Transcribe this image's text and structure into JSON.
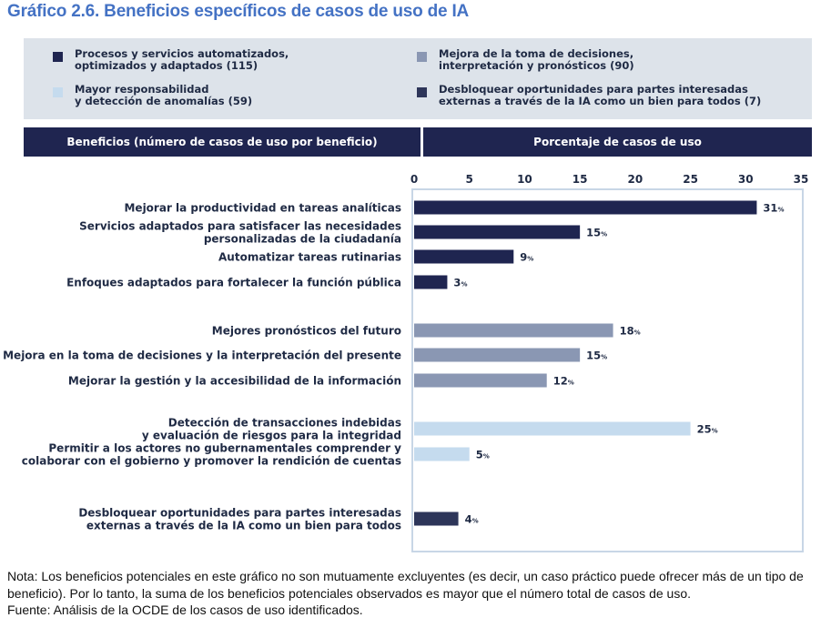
{
  "title": "Gráfico 2.6. Beneficios específicos de casos de uso de IA",
  "legend": [
    {
      "label": "Procesos y servicios automatizados,\noptimizados y adaptados  (115)",
      "color": "#1f2550"
    },
    {
      "label": "Mejora de la toma de decisiones,\ninterpretación y pronósticos (90)",
      "color": "#8a97b3"
    },
    {
      "label": "Mayor responsabilidad\ny detección de anomalías (59)",
      "color": "#c5dbee"
    },
    {
      "label": "Desbloquear oportunidades para partes interesadas\nexternas a través de la IA como un bien para todos (7)",
      "color": "#2d3559"
    }
  ],
  "headers": {
    "left": "Beneficios (número de casos de uso por beneficio)",
    "right": "Porcentaje de casos de uso"
  },
  "chart_data": {
    "type": "bar",
    "orientation": "horizontal",
    "xlim": [
      0,
      35
    ],
    "xticks": [
      0,
      5,
      10,
      15,
      20,
      25,
      30,
      35
    ],
    "value_suffix": "%",
    "categories": [
      "Mejorar la productividad en tareas analíticas",
      "Servicios adaptados para satisfacer las necesidades\npersonalizadas de la ciudadanía",
      "Automatizar tareas rutinarias",
      "Enfoques adaptados para fortalecer la función pública",
      "Mejores pronósticos del futuro",
      "Mejora en la toma de decisiones y la interpretación del presente",
      "Mejorar la gestión y la accesibilidad de la información",
      "Detección de transacciones indebidas\ny evaluación de riesgos para la integridad",
      "Permitir a los actores no gubernamentales comprender y\ncolaborar con el gobierno y promover la rendición de cuentas",
      "Desbloquear oportunidades para partes interesadas\nexternas a través de la IA como un bien para todos"
    ],
    "values": [
      31,
      15,
      9,
      3,
      18,
      15,
      12,
      25,
      5,
      4
    ],
    "groups": [
      0,
      0,
      0,
      0,
      1,
      1,
      1,
      2,
      2,
      3
    ],
    "group_colors": [
      "#1f2550",
      "#8a97b3",
      "#c5dbee",
      "#2d3559"
    ]
  },
  "notes": [
    "Nota: Los beneficios potenciales en este gráfico no son mutuamente excluyentes (es decir, un caso práctico puede ofrecer más de un tipo de beneficio). Por lo tanto, la suma de los beneficios potenciales observados es mayor que el número total de casos de uso.",
    "Fuente: Análisis de la OCDE de los casos de uso identificados."
  ]
}
